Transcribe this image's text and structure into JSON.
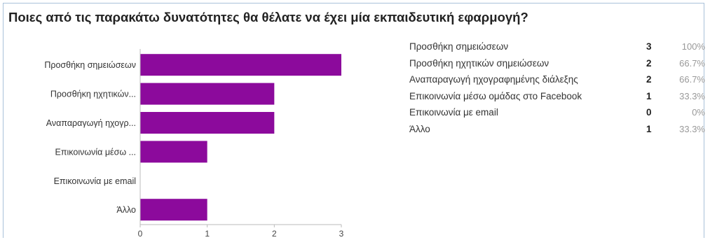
{
  "question": "Ποιες από τις παρακάτω δυνατότητες θα θέλατε να έχει μία εκπαιδευτική εφαρμογή?",
  "colors": {
    "bar": "#8c0a9c",
    "axis": "#bbbbbb",
    "grid": "#dddddd"
  },
  "chart_data": {
    "type": "bar",
    "orientation": "horizontal",
    "categories": [
      "Προσθήκη σημειώσεων",
      "Προσθήκη ηχητικών...",
      "Αναπαραγωγή ηχογρ...",
      "Επικοινωνία μέσω ...",
      "Επικοινωνία με email",
      "Άλλο"
    ],
    "values": [
      3,
      2,
      2,
      1,
      0,
      1
    ],
    "xlim": [
      0,
      3
    ],
    "xticks": [
      "0",
      "1",
      "2",
      "3"
    ],
    "grid": false,
    "legend": "none"
  },
  "summary": [
    {
      "label": "Προσθήκη σημειώσεων",
      "count": "3",
      "percent": "100%"
    },
    {
      "label": "Προσθήκη ηχητικών σημειώσεων",
      "count": "2",
      "percent": "66.7%"
    },
    {
      "label": "Αναπαραγωγή ηχογραφημένης διάλεξης",
      "count": "2",
      "percent": "66.7%"
    },
    {
      "label": "Επικοινωνία μέσω ομάδας στο Facebook",
      "count": "1",
      "percent": "33.3%"
    },
    {
      "label": "Επικοινωνία με email",
      "count": "0",
      "percent": "0%"
    },
    {
      "label": "Άλλο",
      "count": "1",
      "percent": "33.3%"
    }
  ]
}
